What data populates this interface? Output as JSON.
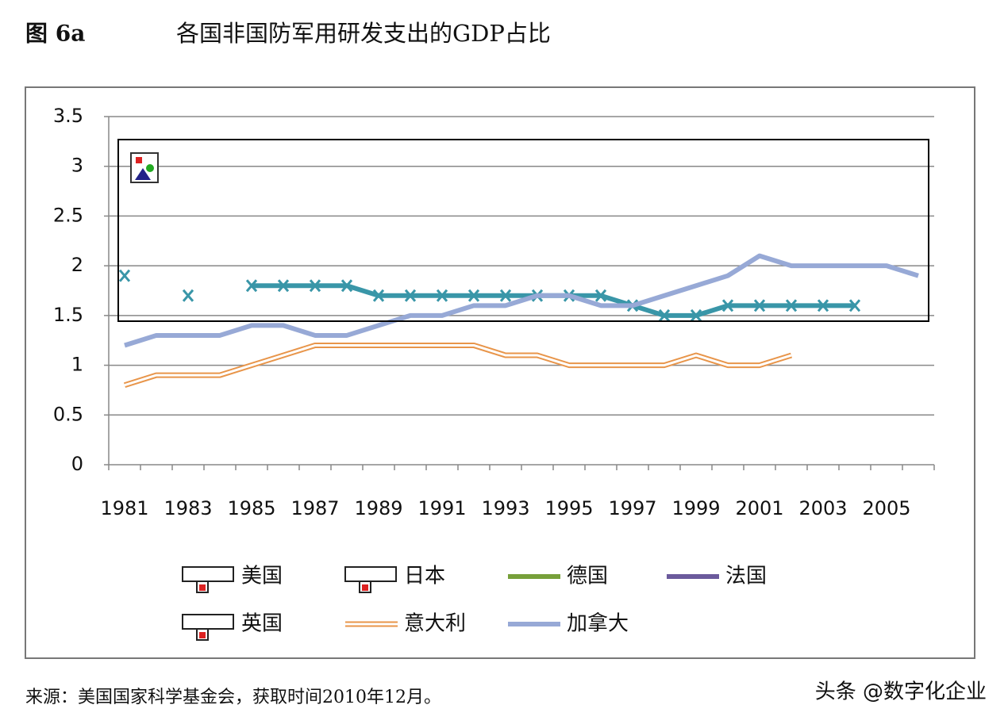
{
  "chart_data": {
    "type": "line",
    "figure_label": "图 6a",
    "title": "各国非国防军用研发支出的GDP占比",
    "categories": [
      "1981",
      null,
      "1983",
      null,
      "1985",
      null,
      "1987",
      null,
      "1989",
      null,
      "1991",
      null,
      "1993",
      null,
      "1995",
      null,
      "1997",
      null,
      "1999",
      null,
      "2001",
      null,
      "2003",
      null,
      "2005",
      null
    ],
    "ylim": [
      0,
      3.5
    ],
    "yticks": [
      0,
      0.5,
      1,
      1.5,
      2,
      2.5,
      3,
      3.5
    ],
    "grid": true,
    "series": [
      {
        "name": "美国",
        "color": null,
        "values": [
          null,
          null,
          null,
          null,
          null,
          null,
          null,
          null,
          null,
          null,
          null,
          null,
          null,
          null,
          null,
          null,
          null,
          null,
          null,
          null,
          null,
          null,
          null,
          null,
          null,
          null
        ]
      },
      {
        "name": "日本",
        "color": null,
        "values": [
          null,
          null,
          null,
          null,
          null,
          null,
          null,
          null,
          null,
          null,
          null,
          null,
          null,
          null,
          null,
          null,
          null,
          null,
          null,
          null,
          null,
          null,
          null,
          null,
          null,
          null
        ]
      },
      {
        "name": "德国",
        "color": "#77a03a",
        "values": [
          null,
          null,
          null,
          null,
          null,
          null,
          null,
          null,
          null,
          null,
          null,
          null,
          null,
          null,
          null,
          null,
          null,
          null,
          null,
          null,
          null,
          null,
          null,
          null,
          null,
          null
        ]
      },
      {
        "name": "法国",
        "color": "#3996a8",
        "legend_color": "#6b5a9c",
        "marker": "x",
        "values": [
          1.9,
          null,
          1.7,
          null,
          1.8,
          1.8,
          1.8,
          1.8,
          1.7,
          1.7,
          1.7,
          1.7,
          1.7,
          1.7,
          1.7,
          1.7,
          1.6,
          1.5,
          1.5,
          1.6,
          1.6,
          1.6,
          1.6,
          1.6,
          null,
          null
        ]
      },
      {
        "name": "英国",
        "color": null,
        "values": [
          null,
          null,
          null,
          null,
          null,
          null,
          null,
          null,
          null,
          null,
          null,
          null,
          null,
          null,
          null,
          null,
          null,
          null,
          null,
          null,
          null,
          null,
          null,
          null,
          null,
          null
        ]
      },
      {
        "name": "意大利",
        "color": "#e8954a",
        "style": "double",
        "values": [
          0.8,
          0.9,
          0.9,
          0.9,
          1.0,
          1.1,
          1.2,
          1.2,
          1.2,
          1.2,
          1.2,
          1.2,
          1.1,
          1.1,
          1.0,
          1.0,
          1.0,
          1.0,
          1.1,
          1.0,
          1.0,
          1.1,
          null,
          null,
          null,
          null
        ]
      },
      {
        "name": "加拿大",
        "color": "#97a9d6",
        "values": [
          1.2,
          1.3,
          1.3,
          1.3,
          1.4,
          1.4,
          1.3,
          1.3,
          1.4,
          1.5,
          1.5,
          1.6,
          1.6,
          1.7,
          1.7,
          1.6,
          1.6,
          1.7,
          1.8,
          1.9,
          2.1,
          2.0,
          2.0,
          2.0,
          2.0,
          1.9
        ]
      }
    ],
    "source": "来源：美国国家科学基金会，获取时间2010年12月。",
    "watermark": "头条 @数字化企业"
  }
}
